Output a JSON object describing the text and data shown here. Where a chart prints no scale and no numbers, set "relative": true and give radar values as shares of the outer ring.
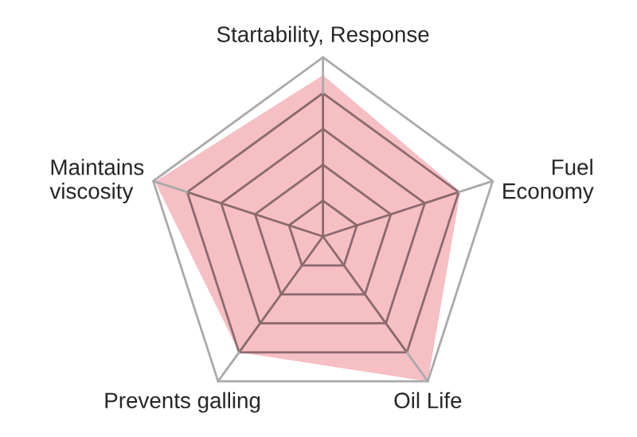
{
  "chart_data": {
    "type": "radar",
    "relative": true,
    "grid": true,
    "categories": [
      "Startability, Response",
      "Fuel\nEconomy",
      "Oil Life",
      "Prevents galling",
      "Maintains\nviscosity"
    ],
    "series": [
      {
        "color": "#f4b4ba",
        "values": [
          0.9,
          0.81,
          1.0,
          0.8,
          0.99
        ]
      }
    ]
  }
}
